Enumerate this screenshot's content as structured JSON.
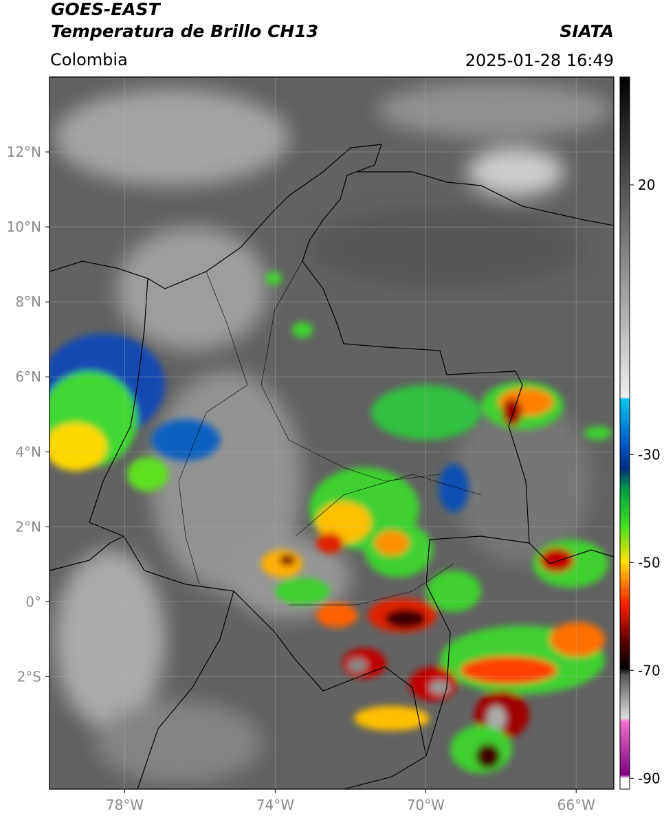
{
  "header": {
    "satellite": "GOES-EAST",
    "product": "Temperatura de Brillo CH13",
    "agency": "SIATA",
    "region": "Colombia",
    "datetime": "2025-01-28 16:49"
  },
  "map": {
    "xlim": [
      -80,
      -65
    ],
    "ylim": [
      -5,
      14
    ],
    "grid": true,
    "xticks": [
      {
        "value": -78,
        "label": "78°W"
      },
      {
        "value": -74,
        "label": "74°W"
      },
      {
        "value": -70,
        "label": "70°W"
      },
      {
        "value": -66,
        "label": "66°W"
      }
    ],
    "yticks": [
      {
        "value": 12,
        "label": "12°N"
      },
      {
        "value": 10,
        "label": "10°N"
      },
      {
        "value": 8,
        "label": "8°N"
      },
      {
        "value": 6,
        "label": "6°N"
      },
      {
        "value": 4,
        "label": "4°N"
      },
      {
        "value": 2,
        "label": "2°N"
      },
      {
        "value": 0,
        "label": "0°"
      },
      {
        "value": -2,
        "label": "2°S"
      }
    ]
  },
  "colorbar": {
    "lim": [
      -92,
      40
    ],
    "ticks": [
      20,
      -30,
      -50,
      -70,
      -90
    ]
  }
}
